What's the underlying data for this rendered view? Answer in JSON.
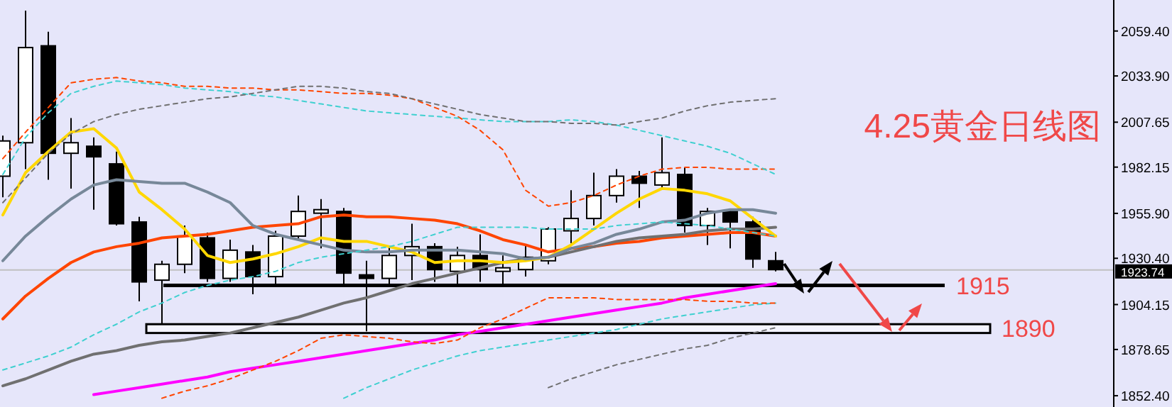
{
  "chart_data": {
    "type": "candlestick",
    "title": "4.25黄金日线图",
    "categories": [
      null,
      null,
      null,
      null,
      null,
      null,
      null,
      null,
      null,
      null,
      null,
      null,
      null,
      null,
      null,
      null,
      null,
      null,
      null,
      null,
      null,
      null,
      null,
      null,
      null,
      null,
      null,
      null,
      null,
      null,
      null,
      null,
      null,
      null,
      null
    ],
    "ohlc": [
      [
        1977,
        2000,
        1965,
        1997
      ],
      [
        1996,
        2071,
        1981,
        2050
      ],
      [
        2051,
        2059,
        1975,
        1990
      ],
      [
        1990,
        2010,
        1970,
        1996
      ],
      [
        1994,
        1999,
        1958,
        1988
      ],
      [
        1984,
        1991,
        1949,
        1950
      ],
      [
        1951,
        1954,
        1906,
        1917
      ],
      [
        1918,
        1929,
        1893,
        1927
      ],
      [
        1927,
        1949,
        1922,
        1943
      ],
      [
        1942,
        1945,
        1917,
        1919
      ],
      [
        1919,
        1941,
        1917,
        1935
      ],
      [
        1934,
        1938,
        1910,
        1920
      ],
      [
        1920,
        1946,
        1915,
        1943
      ],
      [
        1943,
        1966,
        1941,
        1957
      ],
      [
        1956,
        1964,
        1936,
        1958
      ],
      [
        1957,
        1959,
        1916,
        1922
      ],
      [
        1921,
        1929,
        1889,
        1919
      ],
      [
        1919,
        1937,
        1914,
        1932
      ],
      [
        1932,
        1950,
        1918,
        1937
      ],
      [
        1937,
        1939,
        1917,
        1924
      ],
      [
        1923,
        1937,
        1915,
        1932
      ],
      [
        1932,
        1944,
        1917,
        1924
      ],
      [
        1923,
        1932,
        1915,
        1925
      ],
      [
        1924,
        1938,
        1920,
        1931
      ],
      [
        1929,
        1948,
        1927,
        1947
      ],
      [
        1946,
        1969,
        1939,
        1953
      ],
      [
        1953,
        1979,
        1949,
        1966
      ],
      [
        1966,
        1981,
        1962,
        1977
      ],
      [
        1977,
        1980,
        1959,
        1973
      ],
      [
        1972,
        1999,
        1970,
        1979
      ],
      [
        1978,
        1982,
        1945,
        1949
      ],
      [
        1949,
        1959,
        1938,
        1957
      ],
      [
        1957,
        1958,
        1936,
        1951
      ],
      [
        1951,
        1954,
        1925,
        1930
      ],
      [
        1929,
        1934,
        1923,
        1924
      ]
    ],
    "series": [
      {
        "type": "line",
        "color": "#ff4500",
        "line_style": "solid",
        "values": [
          1896,
          1909,
          1919,
          1928,
          1934,
          1937,
          1939,
          1942,
          1943,
          1944,
          1946,
          1948,
          1949,
          1950,
          1954,
          1955,
          1954,
          1954,
          1953,
          1952,
          1950,
          1946,
          1941,
          1938,
          1934,
          1936,
          1937,
          1939,
          1940,
          1942,
          1943,
          1944,
          1945,
          1945,
          1943
        ]
      },
      {
        "type": "line",
        "color": "#707070",
        "line_style": "solid",
        "values": [
          1858,
          1862,
          1867,
          1872,
          1876,
          1878,
          1881,
          1883,
          1884,
          1886,
          1888,
          1891,
          1894,
          1897,
          1901,
          1905,
          1908,
          1912,
          1916,
          1919,
          1922,
          1925,
          1928,
          1930,
          1931,
          1934,
          1937,
          1940,
          1942,
          1943,
          1944,
          1946,
          1947,
          1947,
          1948
        ]
      },
      {
        "type": "line",
        "color": "#ffd700",
        "line_style": "solid",
        "values": [
          1955,
          1979,
          1991,
          2002,
          2004,
          1993,
          1968,
          1958,
          1947,
          1932,
          1928,
          1930,
          1933,
          1937,
          1942,
          1940,
          1940,
          1937,
          1934,
          1928,
          1929,
          1929,
          1928,
          1929,
          1931,
          1938,
          1947,
          1956,
          1964,
          1970,
          1969,
          1967,
          1963,
          1953,
          1943
        ]
      },
      {
        "type": "line",
        "color": "#778899",
        "line_style": "solid",
        "values": [
          1929,
          1943,
          1954,
          1964,
          1972,
          1975,
          1974,
          1973,
          1973,
          1968,
          1962,
          1949,
          1944,
          1941,
          1938,
          1935,
          1934,
          1934,
          1935,
          1935,
          1935,
          1934,
          1933,
          1930,
          1931,
          1936,
          1939,
          1944,
          1947,
          1951,
          1952,
          1956,
          1958,
          1958,
          1956
        ]
      },
      {
        "type": "line",
        "color": "#ff00ff",
        "line_style": "solid",
        "values": [
          null,
          null,
          null,
          null,
          1853,
          1855,
          1857,
          1859,
          1861,
          1863,
          1866,
          1868,
          1870,
          1872,
          1874,
          1876,
          1878,
          1880,
          1882,
          1884,
          1887,
          1889,
          1891,
          1893,
          1895,
          1897,
          1899,
          1901,
          1903,
          1905,
          1908,
          1910,
          1912,
          1914,
          1916
        ]
      },
      {
        "type": "line",
        "color": "#ff4500",
        "line_style": "dashed",
        "values": [
          1987,
          2002,
          2016,
          2030,
          2032,
          2033,
          2031,
          2030,
          2028,
          2028,
          2027,
          2027,
          2026,
          2026,
          2025,
          2024,
          2024,
          2023,
          2021,
          2016,
          2011,
          2003,
          1992,
          1969,
          1960,
          1962,
          1966,
          1972,
          1977,
          1981,
          1982,
          1982,
          1981,
          1981,
          1981
        ]
      },
      {
        "type": "line",
        "color": "#40d0d0",
        "line_style": "dashed",
        "values": [
          1978,
          1999,
          2013,
          2024,
          2028,
          2031,
          2030,
          2029,
          2027,
          2026,
          2025,
          2023,
          2022,
          2020,
          2018,
          2016,
          2014,
          2013,
          2012,
          2011,
          2010,
          2009,
          2008,
          2008,
          2008,
          2009,
          2008,
          2006,
          2003,
          2000,
          1997,
          1994,
          1990,
          1984,
          1978
        ]
      },
      {
        "type": "line",
        "color": "#707070",
        "line_style": "dashed",
        "values": [
          1962,
          1976,
          1990,
          2001,
          2008,
          2012,
          2015,
          2017,
          2019,
          2021,
          2022,
          2024,
          2026,
          2028,
          2028,
          2027,
          2025,
          2024,
          2021,
          2018,
          2015,
          2012,
          2010,
          2008,
          2008,
          2007,
          2007,
          2006,
          2008,
          2010,
          2014,
          2017,
          2019,
          2020,
          2021
        ]
      },
      {
        "type": "line",
        "color": "#40d0d0",
        "line_style": "dashed",
        "values": [
          1867,
          1871,
          1875,
          1880,
          1887,
          1893,
          1900,
          1905,
          1911,
          1915,
          1918,
          1920,
          1923,
          1928,
          1931,
          1933,
          1935,
          1937,
          1940,
          1944,
          1948,
          1948,
          1948,
          1948,
          1947,
          1947,
          1947,
          1949,
          1950,
          1951,
          1950,
          1949,
          1947,
          1945,
          1943
        ]
      },
      {
        "type": "line",
        "color": "#40d0d0",
        "line_style": "dashed",
        "values": [
          null,
          null,
          null,
          null,
          null,
          null,
          null,
          null,
          null,
          null,
          null,
          null,
          null,
          null,
          null,
          1851,
          1857,
          1862,
          1867,
          1871,
          1875,
          1878,
          1880,
          1882,
          1884,
          1886,
          1888,
          1890,
          1893,
          1896,
          1898,
          1900,
          1902,
          1904,
          1905
        ]
      },
      {
        "type": "line",
        "color": "#ff4500",
        "line_style": "dashed",
        "values": [
          null,
          null,
          null,
          null,
          null,
          null,
          null,
          1851,
          1855,
          1858,
          1862,
          1867,
          1872,
          1878,
          1885,
          1887,
          1886,
          1885,
          1883,
          1882,
          1884,
          1891,
          1896,
          1902,
          1908,
          1908,
          1908,
          1907,
          1907,
          1907,
          1907,
          1906,
          1906,
          1905,
          1905
        ]
      },
      {
        "type": "line",
        "color": "#707070",
        "line_style": "dashed",
        "values": [
          null,
          null,
          null,
          null,
          null,
          null,
          null,
          null,
          null,
          null,
          null,
          null,
          null,
          null,
          null,
          null,
          null,
          null,
          null,
          null,
          null,
          null,
          null,
          null,
          1857,
          1862,
          1866,
          1870,
          1873,
          1876,
          1879,
          1881,
          1885,
          1888,
          1891
        ]
      }
    ],
    "ylim": [
      1846,
      2077
    ],
    "yticks": [
      {
        "value": 1852.4,
        "label": "1852.40"
      },
      {
        "value": 1878.65,
        "label": "1878.65"
      },
      {
        "value": 1904.15,
        "label": "1904.15"
      },
      {
        "value": 1930.4,
        "label": "1930.40"
      },
      {
        "value": 1955.9,
        "label": "1955.90"
      },
      {
        "value": 1982.15,
        "label": "1982.15"
      },
      {
        "value": 2007.65,
        "label": "2007.65"
      },
      {
        "value": 2033.9,
        "label": "2033.90"
      },
      {
        "value": 2059.4,
        "label": "2059.40"
      }
    ],
    "tick_labels": "y",
    "ref_lines": [
      {
        "axis": "y",
        "value": 1915,
        "label": "1915",
        "color": "#000000"
      },
      {
        "axis": "y",
        "value": 1923.74,
        "label": "1923.74"
      }
    ],
    "bands": [
      {
        "axis": "y",
        "from": 1888,
        "to": 1893,
        "label": "1890"
      }
    ]
  }
}
